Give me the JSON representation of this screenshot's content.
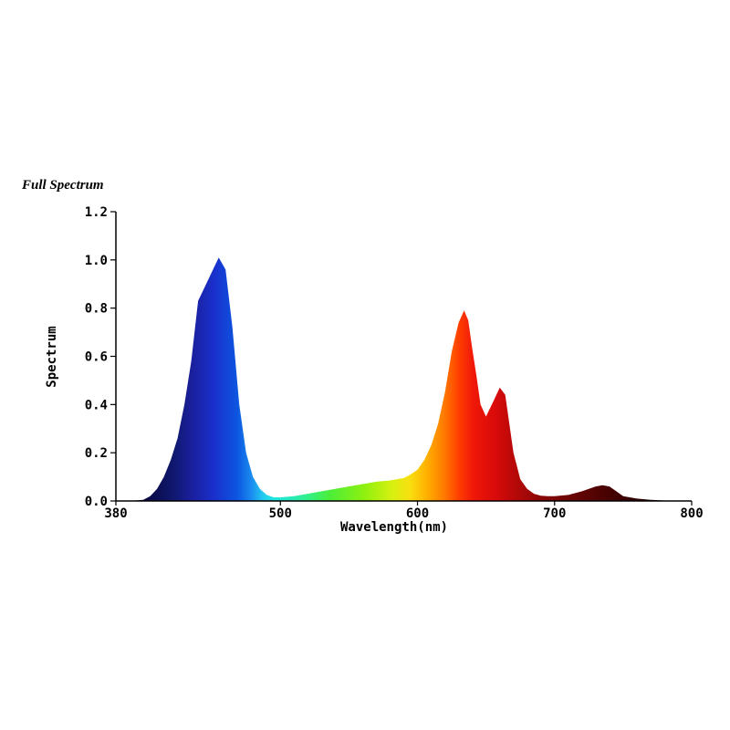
{
  "chart_data": {
    "type": "area",
    "title": "Full Spectrum",
    "xlabel": "Wavelength(nm)",
    "ylabel": "Spectrum",
    "xlim": [
      380,
      800
    ],
    "ylim": [
      0,
      1.2
    ],
    "x_ticks": [
      380,
      500,
      600,
      700,
      800
    ],
    "y_ticks": [
      0.0,
      0.2,
      0.4,
      0.6,
      0.8,
      1.0,
      1.2
    ],
    "x_tick_labels": [
      "380",
      "500",
      "600",
      "700",
      "800"
    ],
    "y_tick_labels": [
      "0.0",
      "0.2",
      "0.4",
      "0.6",
      "0.8",
      "1.0",
      "1.2"
    ],
    "grid": false,
    "fill": "wavelength-colored spectrum",
    "x": [
      390,
      400,
      405,
      410,
      415,
      420,
      425,
      430,
      435,
      440,
      445,
      450,
      455,
      460,
      465,
      470,
      475,
      480,
      485,
      490,
      495,
      500,
      510,
      520,
      530,
      540,
      550,
      560,
      570,
      580,
      590,
      595,
      600,
      605,
      610,
      615,
      620,
      625,
      630,
      634,
      637,
      640,
      643,
      646,
      650,
      655,
      660,
      664,
      667,
      670,
      675,
      680,
      685,
      690,
      695,
      700,
      710,
      720,
      730,
      735,
      740,
      745,
      750,
      760,
      770,
      780,
      790,
      800
    ],
    "values": [
      0.0,
      0.005,
      0.02,
      0.05,
      0.1,
      0.17,
      0.26,
      0.4,
      0.58,
      0.83,
      0.89,
      0.95,
      1.01,
      0.96,
      0.72,
      0.4,
      0.2,
      0.1,
      0.05,
      0.025,
      0.015,
      0.015,
      0.02,
      0.03,
      0.04,
      0.05,
      0.06,
      0.07,
      0.08,
      0.085,
      0.095,
      0.11,
      0.13,
      0.17,
      0.23,
      0.32,
      0.45,
      0.62,
      0.74,
      0.79,
      0.75,
      0.63,
      0.52,
      0.4,
      0.35,
      0.41,
      0.47,
      0.44,
      0.32,
      0.2,
      0.09,
      0.05,
      0.03,
      0.022,
      0.02,
      0.02,
      0.025,
      0.04,
      0.06,
      0.065,
      0.06,
      0.04,
      0.02,
      0.01,
      0.005,
      0.002,
      0.0,
      0.0
    ]
  }
}
